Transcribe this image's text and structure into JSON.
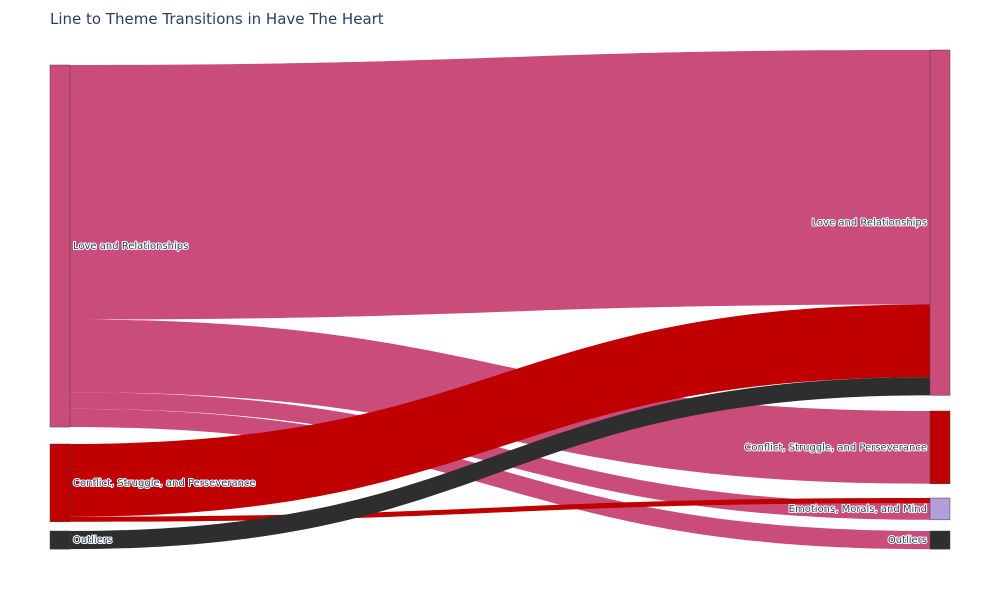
{
  "title": "Line to Theme Transitions in Have The Heart",
  "chart_data": {
    "type": "sankey",
    "title": "Line to Theme Transitions in Have The Heart",
    "sources": [
      {
        "id": "s_love",
        "label": "Love and Relationships",
        "color": "#c94c7a"
      },
      {
        "id": "s_conflict",
        "label": "Conflict, Struggle, and Perseverance",
        "color": "#c00000"
      },
      {
        "id": "s_outliers",
        "label": "Outliers",
        "color": "#2e2e2e"
      }
    ],
    "targets": [
      {
        "id": "t_love",
        "label": "Love and Relationships",
        "color": "#c94c7a"
      },
      {
        "id": "t_conflict",
        "label": "Conflict, Struggle, and Perseverance",
        "color": "#c00000"
      },
      {
        "id": "t_emotions",
        "label": "Emotions, Morals, and Mind",
        "color": "#b39ddb"
      },
      {
        "id": "t_outliers",
        "label": "Outliers",
        "color": "#2e2e2e"
      }
    ],
    "links": [
      {
        "source": "s_love",
        "target": "t_love",
        "value": 35,
        "color": "#c94c7a"
      },
      {
        "source": "s_love",
        "target": "t_conflict",
        "value": 10,
        "color": "#c94c7a"
      },
      {
        "source": "s_love",
        "target": "t_emotions",
        "value": 2.3,
        "color": "#c94c7a"
      },
      {
        "source": "s_love",
        "target": "t_outliers",
        "value": 2.5,
        "color": "#c94c7a"
      },
      {
        "source": "s_conflict",
        "target": "t_love",
        "value": 10,
        "color": "#c00000"
      },
      {
        "source": "s_conflict",
        "target": "t_emotions",
        "value": 0.7,
        "color": "#c00000"
      },
      {
        "source": "s_outliers",
        "target": "t_love",
        "value": 2.5,
        "color": "#2e2e2e"
      }
    ]
  }
}
